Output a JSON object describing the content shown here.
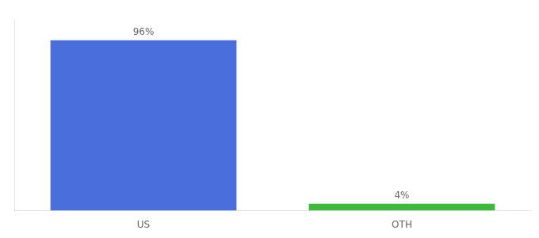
{
  "chart_data": {
    "type": "bar",
    "categories": [
      "US",
      "OTH"
    ],
    "values": [
      96,
      4
    ],
    "value_labels": [
      "96%",
      "4%"
    ],
    "colors": [
      "#4a6edb",
      "#3dba3d"
    ],
    "ylim": [
      0,
      108
    ],
    "grid": false,
    "data_labels": true,
    "tick_labels": "x"
  }
}
